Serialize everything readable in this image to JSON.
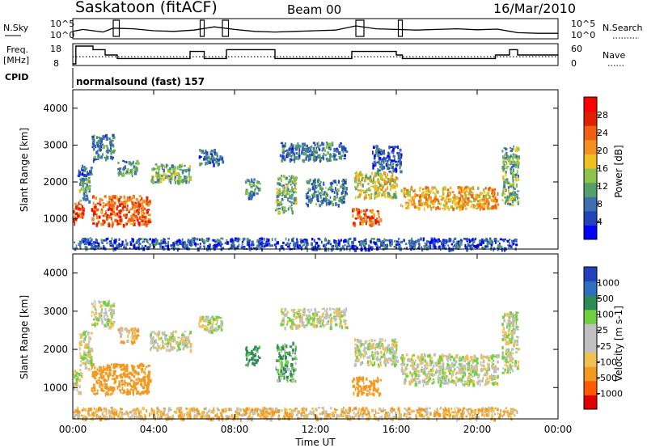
{
  "header": {
    "station": "Saskatoon (fitACF)",
    "beam": "Beam 00",
    "date": "16/Mar/2010"
  },
  "status_panels": {
    "nsky_label": "N.Sky",
    "nsky_ticks": [
      "10^5",
      "10^0"
    ],
    "nsearch_label": "N.Search",
    "freq_label": "Freq.",
    "freq_unit": "[MHz]",
    "freq_ticks": [
      "18",
      "8"
    ],
    "nave_label": "Nave",
    "nave_ticks": [
      "60",
      "0"
    ],
    "cpid_label": "CPID",
    "cpid_text": "normalsound (fast) 157"
  },
  "colors": {
    "power_scale": [
      "#0000ff",
      "#2244bb",
      "#3f6fb0",
      "#55a06a",
      "#8cc34a",
      "#f0c020",
      "#f29020",
      "#f06010",
      "#e02000",
      "#ff0000"
    ],
    "velocity_scale": [
      "#e00000",
      "#ff5a00",
      "#f29a20",
      "#f0c050",
      "#c0c0c0",
      "#c0c0c0",
      "#70d040",
      "#2e8b57",
      "#2f6fbf",
      "#2040c0"
    ],
    "axis": "#000000"
  },
  "chart_data": [
    {
      "type": "line",
      "title": "N.Sky / N.Search",
      "x_unit": "hours UT",
      "x": [
        0,
        0.5,
        1,
        1.5,
        2,
        3,
        4,
        5,
        6,
        7,
        8,
        9,
        10,
        11,
        12,
        13,
        14,
        15,
        16,
        17,
        18,
        19,
        20,
        21,
        22,
        23,
        24
      ],
      "series": [
        {
          "name": "N.Sky",
          "values": [
            1.8,
            2.4,
            2.0,
            1.6,
            2.8,
            2.6,
            2.0,
            1.8,
            2.2,
            3.2,
            2.4,
            1.8,
            1.6,
            1.8,
            2.0,
            2.2,
            3.5,
            2.6,
            2.4,
            2.2,
            2.4,
            2.6,
            2.3,
            2.5,
            1.4,
            1.2,
            1.2
          ]
        }
      ],
      "ylim": [
        0,
        5
      ]
    },
    {
      "type": "line",
      "title": "Freq. / Nave",
      "x_unit": "hours UT",
      "series": [
        {
          "name": "Freq.",
          "x": [
            0,
            0.15,
            0.15,
            1,
            1,
            1.6,
            1.6,
            2.2,
            2.2,
            5.8,
            5.8,
            6.5,
            6.5,
            7.6,
            7.6,
            10,
            10,
            13.8,
            13.8,
            16,
            16,
            16.3,
            16.3,
            20.9,
            20.9,
            21.6,
            21.6,
            22,
            22,
            24
          ],
          "values": [
            8,
            8,
            18,
            18,
            16,
            16,
            13,
            13,
            11,
            11,
            15,
            15,
            11,
            11,
            16,
            16,
            11,
            11,
            15,
            15,
            13,
            13,
            11,
            11,
            13,
            13,
            16,
            16,
            13,
            13
          ]
        },
        {
          "name": "Nave",
          "x": [
            0,
            24
          ],
          "values": [
            24,
            24
          ]
        }
      ],
      "ylim_freq": [
        8,
        18
      ],
      "ylim_nave": [
        0,
        60
      ]
    },
    {
      "type": "heatmap",
      "title": "Power",
      "xlabel": "Time UT",
      "ylabel": "Slant Range [km]",
      "x_ticks": [
        "00:00",
        "04:00",
        "08:00",
        "12:00",
        "16:00",
        "20:00",
        "00:00"
      ],
      "xlim_hours": [
        0,
        24
      ],
      "ylim": [
        180,
        4500
      ],
      "y_ticks": [
        1000,
        2000,
        3000,
        4000
      ],
      "colorbar_label": "Power [dB]",
      "colorbar_ticks": [
        4,
        8,
        12,
        16,
        20,
        24,
        28
      ],
      "colorbar_range": [
        0,
        32
      ],
      "regions": [
        {
          "t": [
            0.0,
            0.5
          ],
          "r": [
            900,
            1500
          ],
          "level": 26
        },
        {
          "t": [
            0.3,
            0.8
          ],
          "r": [
            1500,
            2100
          ],
          "level": 12
        },
        {
          "t": [
            0.2,
            0.9
          ],
          "r": [
            2100,
            2500
          ],
          "level": 6
        },
        {
          "t": [
            0.9,
            3.8
          ],
          "r": [
            850,
            1650
          ],
          "level": 25
        },
        {
          "t": [
            0.9,
            2.0
          ],
          "r": [
            2600,
            3300
          ],
          "level": 8
        },
        {
          "t": [
            2.2,
            3.2
          ],
          "r": [
            2200,
            2600
          ],
          "level": 10
        },
        {
          "t": [
            3.8,
            5.8
          ],
          "r": [
            2000,
            2500
          ],
          "level": 12
        },
        {
          "t": [
            6.2,
            7.4
          ],
          "r": [
            2500,
            2900
          ],
          "level": 6
        },
        {
          "t": [
            8.5,
            9.2
          ],
          "r": [
            1600,
            2100
          ],
          "level": 10
        },
        {
          "t": [
            10.0,
            11.0
          ],
          "r": [
            1200,
            2200
          ],
          "level": 12
        },
        {
          "t": [
            10.2,
            13.5
          ],
          "r": [
            2600,
            3100
          ],
          "level": 7
        },
        {
          "t": [
            11.5,
            13.5
          ],
          "r": [
            1400,
            2100
          ],
          "level": 8
        },
        {
          "t": [
            13.8,
            15.2
          ],
          "r": [
            850,
            1300
          ],
          "level": 25
        },
        {
          "t": [
            13.9,
            16.0
          ],
          "r": [
            1600,
            2300
          ],
          "level": 16
        },
        {
          "t": [
            14.8,
            16.2
          ],
          "r": [
            2300,
            3000
          ],
          "level": 6
        },
        {
          "t": [
            16.2,
            21.0
          ],
          "r": [
            1300,
            1900
          ],
          "level": 20
        },
        {
          "t": [
            21.2,
            22.0
          ],
          "r": [
            1400,
            3000
          ],
          "level": 12
        },
        {
          "t": [
            0.0,
            22.0
          ],
          "r": [
            200,
            500
          ],
          "level": 5
        }
      ]
    },
    {
      "type": "heatmap",
      "title": "Velocity",
      "xlabel": "Time UT",
      "ylabel": "Slant Range [km]",
      "x_ticks": [
        "00:00",
        "04:00",
        "08:00",
        "12:00",
        "16:00",
        "20:00",
        "00:00"
      ],
      "xlim_hours": [
        0,
        24
      ],
      "ylim": [
        180,
        4500
      ],
      "y_ticks": [
        1000,
        2000,
        3000,
        4000
      ],
      "colorbar_label": "Velocity [m s-1]",
      "colorbar_ticks": [
        -1000,
        -500,
        -100,
        -25,
        25,
        100,
        500,
        1000
      ],
      "regions": [
        {
          "t": [
            0.0,
            0.4
          ],
          "r": [
            900,
            1500
          ],
          "level": 0
        },
        {
          "t": [
            0.3,
            0.9
          ],
          "r": [
            1500,
            2500
          ],
          "level": 0
        },
        {
          "t": [
            0.9,
            3.8
          ],
          "r": [
            850,
            1650
          ],
          "level": -200
        },
        {
          "t": [
            0.9,
            2.0
          ],
          "r": [
            2600,
            3300
          ],
          "level": 0
        },
        {
          "t": [
            2.2,
            3.2
          ],
          "r": [
            2200,
            2600
          ],
          "level": -50
        },
        {
          "t": [
            3.8,
            5.8
          ],
          "r": [
            2000,
            2500
          ],
          "level": 0
        },
        {
          "t": [
            6.2,
            7.4
          ],
          "r": [
            2500,
            2900
          ],
          "level": 0
        },
        {
          "t": [
            8.5,
            9.2
          ],
          "r": [
            1600,
            2100
          ],
          "level": 100
        },
        {
          "t": [
            10.0,
            11.0
          ],
          "r": [
            1200,
            2200
          ],
          "level": 60
        },
        {
          "t": [
            10.2,
            13.5
          ],
          "r": [
            2600,
            3100
          ],
          "level": 0
        },
        {
          "t": [
            13.8,
            15.2
          ],
          "r": [
            850,
            1300
          ],
          "level": -150
        },
        {
          "t": [
            13.9,
            16.0
          ],
          "r": [
            1600,
            2300
          ],
          "level": 0
        },
        {
          "t": [
            16.2,
            21.0
          ],
          "r": [
            1100,
            1900
          ],
          "level": 0
        },
        {
          "t": [
            21.2,
            22.0
          ],
          "r": [
            1400,
            3000
          ],
          "level": 0
        },
        {
          "t": [
            0.0,
            22.0
          ],
          "r": [
            200,
            500
          ],
          "level": -50
        }
      ]
    }
  ]
}
